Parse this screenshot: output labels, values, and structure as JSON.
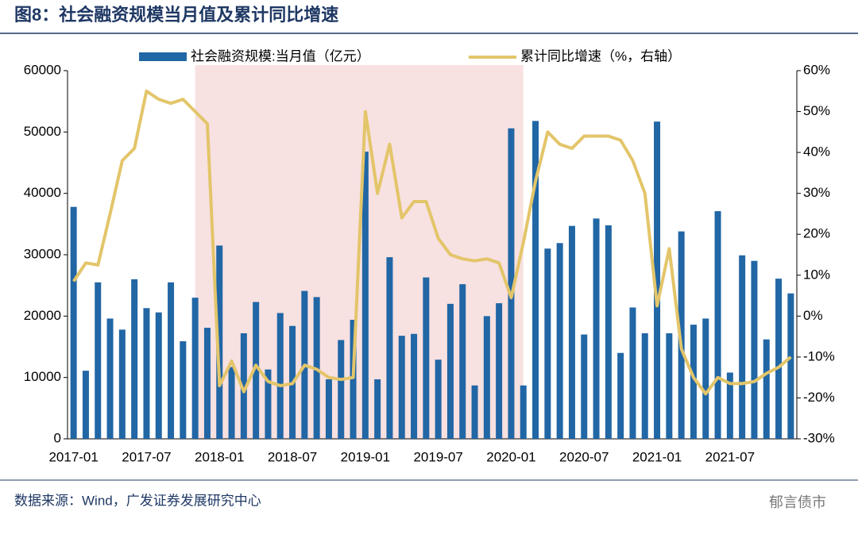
{
  "chart_data": {
    "type": "bar_line",
    "title": "图8：社会融资规模当月值及累计同比增速",
    "source": "数据来源：Wind，广发证券发展研究中心",
    "watermark": "郁言债市",
    "categories": [
      "2017-01",
      null,
      null,
      null,
      null,
      null,
      "2017-07",
      null,
      null,
      null,
      null,
      null,
      "2018-01",
      null,
      null,
      null,
      null,
      null,
      "2018-07",
      null,
      null,
      null,
      null,
      null,
      "2019-01",
      null,
      null,
      null,
      null,
      null,
      "2019-07",
      null,
      null,
      null,
      null,
      null,
      "2020-01",
      null,
      null,
      null,
      null,
      null,
      "2020-07",
      null,
      null,
      null,
      null,
      null,
      "2021-01",
      null,
      null,
      null,
      null,
      null,
      "2021-07",
      null,
      null,
      null,
      null,
      null
    ],
    "series": [
      {
        "name": "社会融资规模:当月值（亿元）",
        "color": "#2166a5",
        "type": "bar",
        "values": [
          37800,
          11100,
          25500,
          19600,
          17800,
          26000,
          21300,
          20600,
          25500,
          15900,
          23000,
          18100,
          31500,
          11700,
          17200,
          22300,
          11300,
          20500,
          18400,
          24100,
          23100,
          9700,
          16100,
          19400,
          46800,
          9700,
          29600,
          16800,
          17100,
          26300,
          12900,
          22000,
          25200,
          8700,
          20000,
          22100,
          50600,
          8700,
          51800,
          31000,
          31900,
          34700,
          17000,
          35900,
          34800,
          14000,
          21400,
          17200,
          51700,
          17200,
          33800,
          18600,
          19600,
          37100,
          10800,
          29900,
          29000,
          16200,
          26100,
          23700
        ]
      },
      {
        "name": "累计同比增速（%，右轴）",
        "color": "#e3c56a",
        "type": "line",
        "axis": "y2",
        "values": [
          8.5,
          13,
          12.5,
          25,
          38,
          41,
          55,
          53,
          52,
          53,
          50,
          47,
          -17,
          -11,
          -18.5,
          -12,
          -16,
          -17,
          -16.5,
          -12,
          -13,
          -15,
          -15.5,
          -15,
          50,
          30,
          42,
          24,
          28,
          28,
          19,
          15,
          14,
          13.5,
          14,
          13,
          4.5,
          18,
          33,
          45,
          42,
          41,
          44,
          44,
          44,
          43,
          38,
          30,
          2.5,
          16.5,
          -8,
          -15,
          -19,
          -15,
          -16.5,
          -16.5,
          -16,
          -14,
          -12.5,
          -10
        ]
      }
    ],
    "shaded_range": [
      "2017-11",
      "2020-02"
    ],
    "shade_color": "#f8e1e1",
    "ylim": [
      0,
      60000
    ],
    "yticks": [
      0,
      10000,
      20000,
      30000,
      40000,
      50000,
      60000
    ],
    "y2lim": [
      -30,
      60
    ],
    "y2ticks": [
      {
        "value": -30,
        "label": "-30%"
      },
      {
        "value": -20,
        "label": "-20%"
      },
      {
        "value": -10,
        "label": "-10%"
      },
      {
        "value": 0,
        "label": "0%"
      },
      {
        "value": 10,
        "label": "10%"
      },
      {
        "value": 20,
        "label": "20%"
      },
      {
        "value": 30,
        "label": "30%"
      },
      {
        "value": 40,
        "label": "40%"
      },
      {
        "value": 50,
        "label": "50%"
      },
      {
        "value": 60,
        "label": "60%"
      }
    ]
  }
}
